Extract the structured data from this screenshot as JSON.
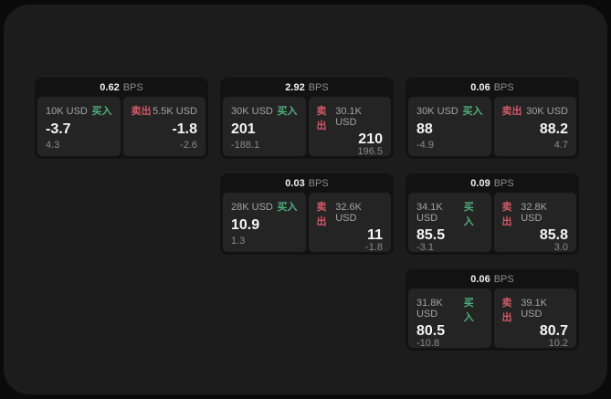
{
  "colors": {
    "buy_accent": "#4fae7a",
    "sell_accent": "#d15866",
    "panel_bg": "#1c1c1c",
    "card_bg": "#121212",
    "tile_bg": "#242424"
  },
  "cards": [
    {
      "bps_value": "0.62",
      "bps_unit": "BPS",
      "buy": {
        "amount": "10K USD",
        "side_label": "买入",
        "price": "-3.7",
        "delta": "4.3"
      },
      "sell": {
        "side_label": "卖出",
        "amount": "5.5K USD",
        "price": "-1.8",
        "delta": "-2.6"
      }
    },
    {
      "bps_value": "2.92",
      "bps_unit": "BPS",
      "buy": {
        "amount": "30K USD",
        "side_label": "买入",
        "price": "201",
        "delta": "-188.1"
      },
      "sell": {
        "side_label": "卖出",
        "amount": "30.1K USD",
        "price": "210",
        "delta": "196.5"
      }
    },
    {
      "bps_value": "0.06",
      "bps_unit": "BPS",
      "buy": {
        "amount": "30K USD",
        "side_label": "买入",
        "price": "88",
        "delta": "-4.9"
      },
      "sell": {
        "side_label": "卖出",
        "amount": "30K USD",
        "price": "88.2",
        "delta": "4.7"
      }
    },
    {
      "bps_value": "0.03",
      "bps_unit": "BPS",
      "buy": {
        "amount": "28K USD",
        "side_label": "买入",
        "price": "10.9",
        "delta": "1.3"
      },
      "sell": {
        "side_label": "卖出",
        "amount": "32.6K USD",
        "price": "11",
        "delta": "-1.8"
      }
    },
    {
      "bps_value": "0.09",
      "bps_unit": "BPS",
      "buy": {
        "amount": "34.1K USD",
        "side_label": "买入",
        "price": "85.5",
        "delta": "-3.1"
      },
      "sell": {
        "side_label": "卖出",
        "amount": "32.8K USD",
        "price": "85.8",
        "delta": "3.0"
      }
    },
    {
      "bps_value": "0.06",
      "bps_unit": "BPS",
      "buy": {
        "amount": "31.8K USD",
        "side_label": "买入",
        "price": "80.5",
        "delta": "-10.8"
      },
      "sell": {
        "side_label": "卖出",
        "amount": "39.1K USD",
        "price": "80.7",
        "delta": "10.2"
      }
    }
  ]
}
